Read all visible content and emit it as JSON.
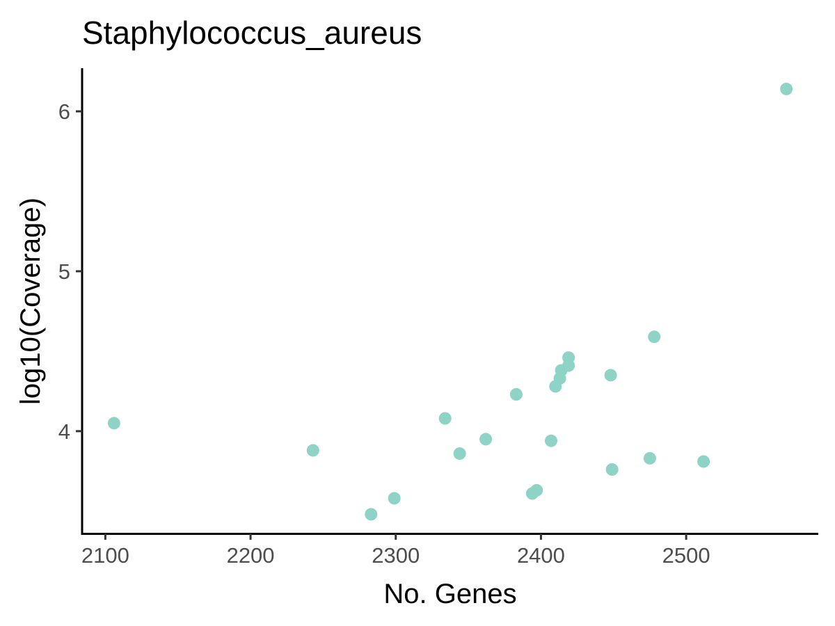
{
  "chart_data": {
    "type": "scatter",
    "title": "Staphylococcus_aureus",
    "xlabel": "No. Genes",
    "ylabel": "log10(Coverage)",
    "xlim": [
      2084,
      2591
    ],
    "ylim": [
      3.36,
      6.27
    ],
    "x_ticks": [
      2100,
      2200,
      2300,
      2400,
      2500
    ],
    "y_ticks": [
      4,
      5,
      6
    ],
    "grid": false,
    "point_color": "#8fd3c6",
    "points": [
      {
        "x": 2106,
        "y": 4.05
      },
      {
        "x": 2243,
        "y": 3.88
      },
      {
        "x": 2283,
        "y": 3.48
      },
      {
        "x": 2299,
        "y": 3.58
      },
      {
        "x": 2334,
        "y": 4.08
      },
      {
        "x": 2344,
        "y": 3.86
      },
      {
        "x": 2362,
        "y": 3.95
      },
      {
        "x": 2383,
        "y": 4.23
      },
      {
        "x": 2394,
        "y": 3.61
      },
      {
        "x": 2397,
        "y": 3.63
      },
      {
        "x": 2407,
        "y": 3.94
      },
      {
        "x": 2410,
        "y": 4.28
      },
      {
        "x": 2413,
        "y": 4.33
      },
      {
        "x": 2414,
        "y": 4.38
      },
      {
        "x": 2419,
        "y": 4.41
      },
      {
        "x": 2419,
        "y": 4.46
      },
      {
        "x": 2448,
        "y": 4.35
      },
      {
        "x": 2449,
        "y": 3.76
      },
      {
        "x": 2475,
        "y": 3.83
      },
      {
        "x": 2478,
        "y": 4.59
      },
      {
        "x": 2512,
        "y": 3.81
      },
      {
        "x": 2569,
        "y": 6.14
      }
    ]
  }
}
